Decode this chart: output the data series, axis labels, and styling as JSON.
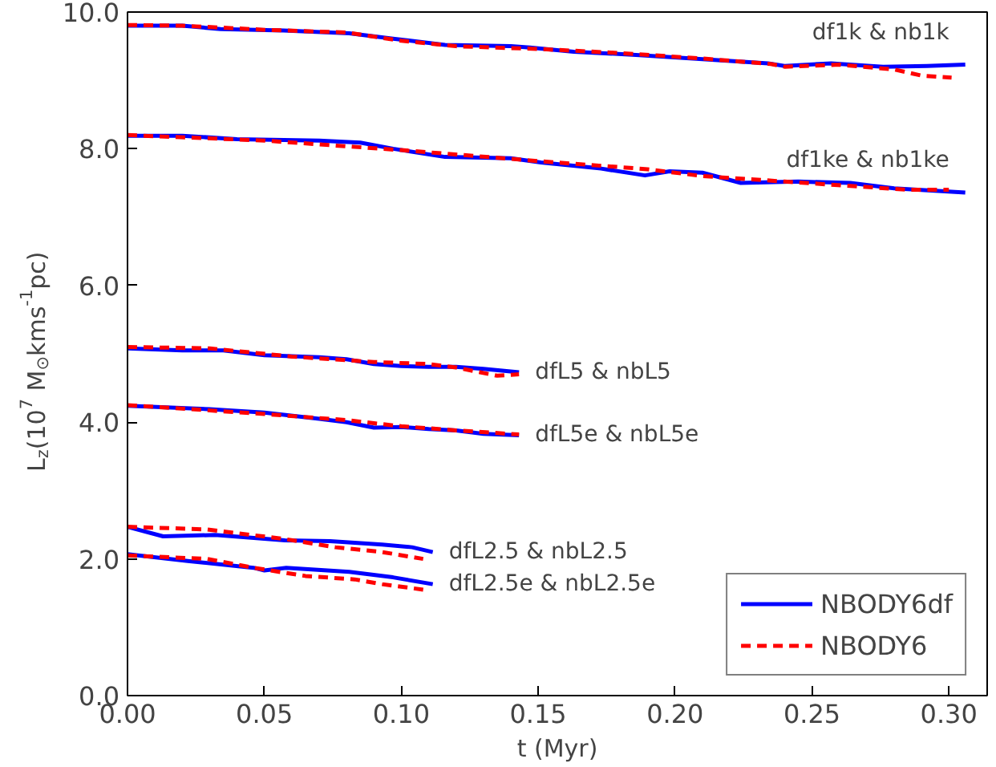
{
  "chart_data": {
    "type": "line",
    "xlabel": "t (Myr)",
    "ylabel": "L$_{z}$(10$^{7}$ M$_{⊙}$kms$^{-1}$pc)",
    "xlim": [
      0,
      0.314
    ],
    "ylim": [
      0,
      10
    ],
    "xticks": [
      {
        "value": 0,
        "label": "0.00"
      },
      {
        "value": 0.05,
        "label": "0.05"
      },
      {
        "value": 0.1,
        "label": "0.10"
      },
      {
        "value": 0.15,
        "label": "0.15"
      },
      {
        "value": 0.2,
        "label": "0.20"
      },
      {
        "value": 0.25,
        "label": "0.25"
      },
      {
        "value": 0.3,
        "label": "0.30"
      }
    ],
    "yticks": [
      {
        "value": 0,
        "label": "0.0"
      },
      {
        "value": 2,
        "label": "2.0"
      },
      {
        "value": 4,
        "label": "4.0"
      },
      {
        "value": 6,
        "label": "6.0"
      },
      {
        "value": 8,
        "label": "8.0"
      },
      {
        "value": 10,
        "label": "10.0"
      }
    ],
    "grid": false,
    "legend": "bottom right",
    "series": [
      {
        "name": "NBODY6df",
        "color": "#0000ff",
        "line_style": "solid",
        "x": [
          0,
          0.02,
          0.034,
          0.057,
          0.081,
          0.097,
          0.116,
          0.14,
          0.147,
          0.163,
          0.187,
          0.21,
          0.234,
          0.24,
          0.257,
          0.276,
          0.292,
          0.306
        ],
        "values": [
          9.8,
          9.8,
          9.75,
          9.73,
          9.69,
          9.61,
          9.52,
          9.5,
          9.48,
          9.42,
          9.37,
          9.31,
          9.25,
          9.21,
          9.25,
          9.2,
          9.21,
          9.23
        ]
      },
      {
        "name": "NBODY6",
        "color": "#ff0000",
        "line_style": "dashed",
        "x": [
          0,
          0.02,
          0.05,
          0.08,
          0.1,
          0.12,
          0.15,
          0.18,
          0.21,
          0.235,
          0.24,
          0.26,
          0.28,
          0.29,
          0.301
        ],
        "values": [
          9.81,
          9.8,
          9.74,
          9.7,
          9.58,
          9.5,
          9.46,
          9.4,
          9.32,
          9.24,
          9.2,
          9.23,
          9.16,
          9.07,
          9.04
        ]
      },
      {
        "color": "#0000ff",
        "line_style": "solid",
        "x": [
          0,
          0.02,
          0.04,
          0.07,
          0.085,
          0.097,
          0.116,
          0.14,
          0.151,
          0.173,
          0.189,
          0.198,
          0.21,
          0.224,
          0.245,
          0.264,
          0.28,
          0.306
        ],
        "values": [
          8.19,
          8.19,
          8.14,
          8.12,
          8.09,
          8.0,
          7.88,
          7.86,
          7.8,
          7.71,
          7.61,
          7.67,
          7.65,
          7.5,
          7.52,
          7.5,
          7.42,
          7.36
        ]
      },
      {
        "color": "#ff0000",
        "line_style": "dashed",
        "x": [
          0,
          0.05,
          0.1,
          0.15,
          0.19,
          0.21,
          0.24,
          0.27,
          0.285,
          0.3
        ],
        "values": [
          8.2,
          8.12,
          7.98,
          7.82,
          7.7,
          7.6,
          7.52,
          7.44,
          7.4,
          7.4
        ]
      },
      {
        "color": "#0000ff",
        "line_style": "solid",
        "x": [
          0,
          0.02,
          0.035,
          0.05,
          0.07,
          0.08,
          0.09,
          0.1,
          0.11,
          0.12,
          0.13,
          0.143
        ],
        "values": [
          5.08,
          5.05,
          5.05,
          4.98,
          4.95,
          4.92,
          4.85,
          4.82,
          4.81,
          4.81,
          4.78,
          4.73
        ]
      },
      {
        "color": "#ff0000",
        "line_style": "dashed",
        "x": [
          0,
          0.03,
          0.06,
          0.09,
          0.11,
          0.12,
          0.135,
          0.143
        ],
        "values": [
          5.1,
          5.08,
          4.96,
          4.88,
          4.85,
          4.8,
          4.68,
          4.7
        ]
      },
      {
        "color": "#0000ff",
        "line_style": "solid",
        "x": [
          0,
          0.03,
          0.05,
          0.07,
          0.08,
          0.09,
          0.1,
          0.11,
          0.12,
          0.13,
          0.143
        ],
        "values": [
          4.24,
          4.19,
          4.14,
          4.05,
          4.0,
          3.92,
          3.93,
          3.9,
          3.88,
          3.83,
          3.81
        ]
      },
      {
        "color": "#ff0000",
        "line_style": "dashed",
        "x": [
          0,
          0.05,
          0.08,
          0.1,
          0.12,
          0.143
        ],
        "values": [
          4.25,
          4.12,
          4.03,
          3.94,
          3.88,
          3.82
        ]
      },
      {
        "color": "#0000ff",
        "line_style": "solid",
        "x": [
          0,
          0.013,
          0.032,
          0.0575,
          0.074,
          0.093,
          0.104,
          0.1115
        ],
        "values": [
          2.47,
          2.33,
          2.35,
          2.27,
          2.26,
          2.21,
          2.17,
          2.1
        ]
      },
      {
        "color": "#ff0000",
        "line_style": "dashed",
        "x": [
          0,
          0.029,
          0.0575,
          0.076,
          0.093,
          0.108
        ],
        "values": [
          2.47,
          2.43,
          2.29,
          2.17,
          2.1,
          2.0
        ]
      },
      {
        "color": "#0000ff",
        "line_style": "solid",
        "x": [
          0,
          0.022,
          0.046,
          0.05,
          0.058,
          0.081,
          0.097,
          0.1115
        ],
        "values": [
          2.07,
          1.97,
          1.87,
          1.83,
          1.87,
          1.81,
          1.73,
          1.63
        ]
      },
      {
        "color": "#ff0000",
        "line_style": "dashed",
        "x": [
          0,
          0.029,
          0.046,
          0.065,
          0.083,
          0.093,
          0.108
        ],
        "values": [
          2.05,
          2.0,
          1.87,
          1.75,
          1.7,
          1.63,
          1.55
        ]
      }
    ],
    "annotations": [
      "df1k & nb1k",
      "df1ke & nb1ke",
      "dfL5 & nbL5",
      "dfL5e & nbL5e",
      "dfL2.5 & nbL2.5",
      "dfL2.5e & nbL2.5e"
    ]
  }
}
